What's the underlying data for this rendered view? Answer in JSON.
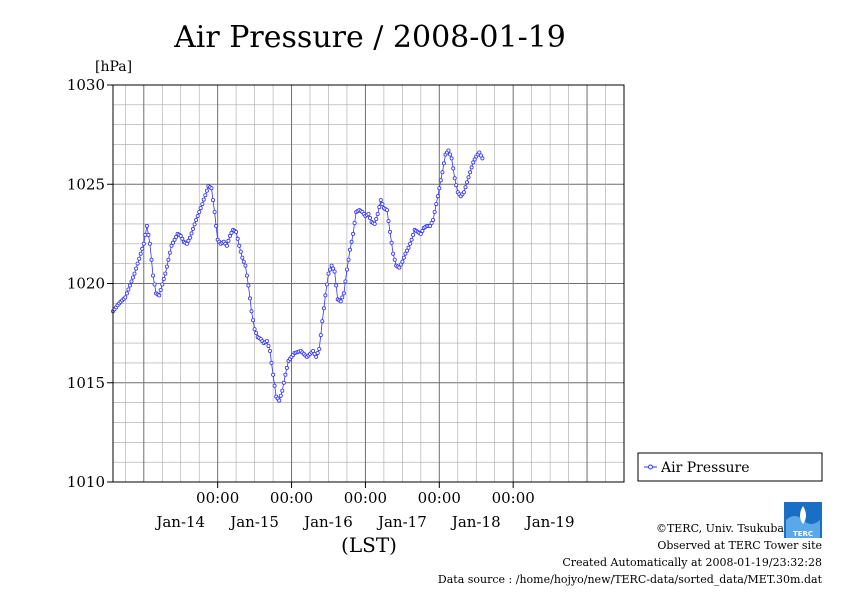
{
  "chart_data": {
    "type": "line",
    "title": "Air Pressure / 2008-01-19",
    "ylabel_unit": "[hPa]",
    "xlabel": "(LST)",
    "ylim": [
      1010,
      1030
    ],
    "yticks": [
      "1010",
      "1015",
      "1020",
      "1025",
      "1030"
    ],
    "xlim_hours": [
      -10,
      156
    ],
    "x_time_ticks": [
      {
        "hour": 24,
        "label": "00:00"
      },
      {
        "hour": 48,
        "label": "00:00"
      },
      {
        "hour": 72,
        "label": "00:00"
      },
      {
        "hour": 96,
        "label": "00:00"
      },
      {
        "hour": 120,
        "label": "00:00"
      }
    ],
    "x_day_labels": [
      {
        "hour": 12,
        "label": "Jan-14"
      },
      {
        "hour": 36,
        "label": "Jan-15"
      },
      {
        "hour": 60,
        "label": "Jan-16"
      },
      {
        "hour": 84,
        "label": "Jan-17"
      },
      {
        "hour": 108,
        "label": "Jan-18"
      },
      {
        "hour": 132,
        "label": "Jan-19"
      }
    ],
    "grid": true,
    "legend_position": "right",
    "series": [
      {
        "name": "Air Pressure",
        "color": "#3333ff",
        "interval_hours": 0.5,
        "start_hour": -10,
        "anchor_points": [
          [
            -10,
            1018.6
          ],
          [
            -8,
            1019.0
          ],
          [
            -6,
            1019.3
          ],
          [
            -3,
            1020.5
          ],
          [
            0,
            1022.0
          ],
          [
            1,
            1022.9
          ],
          [
            2,
            1022.0
          ],
          [
            3,
            1020.4
          ],
          [
            4,
            1019.5
          ],
          [
            5,
            1019.4
          ],
          [
            7,
            1020.5
          ],
          [
            9,
            1021.9
          ],
          [
            11,
            1022.5
          ],
          [
            12,
            1022.4
          ],
          [
            13,
            1022.1
          ],
          [
            14,
            1022.0
          ],
          [
            15,
            1022.3
          ],
          [
            17,
            1023.2
          ],
          [
            19,
            1024.0
          ],
          [
            21,
            1024.9
          ],
          [
            22,
            1024.8
          ],
          [
            23,
            1023.6
          ],
          [
            24,
            1022.2
          ],
          [
            25,
            1022.0
          ],
          [
            26,
            1022.1
          ],
          [
            27,
            1021.9
          ],
          [
            28,
            1022.4
          ],
          [
            29,
            1022.7
          ],
          [
            30,
            1022.6
          ],
          [
            31,
            1021.9
          ],
          [
            32,
            1021.3
          ],
          [
            33,
            1020.9
          ],
          [
            34,
            1019.9
          ],
          [
            35,
            1018.6
          ],
          [
            36,
            1017.7
          ],
          [
            37,
            1017.3
          ],
          [
            38,
            1017.2
          ],
          [
            39,
            1017.0
          ],
          [
            40,
            1017.1
          ],
          [
            41,
            1016.6
          ],
          [
            42,
            1015.4
          ],
          [
            43,
            1014.3
          ],
          [
            44,
            1014.1
          ],
          [
            45,
            1014.6
          ],
          [
            46,
            1015.4
          ],
          [
            47,
            1016.1
          ],
          [
            49,
            1016.5
          ],
          [
            51,
            1016.6
          ],
          [
            53,
            1016.3
          ],
          [
            55,
            1016.6
          ],
          [
            56,
            1016.3
          ],
          [
            57,
            1016.7
          ],
          [
            58,
            1018.1
          ],
          [
            59,
            1019.4
          ],
          [
            60,
            1020.5
          ],
          [
            61,
            1020.9
          ],
          [
            62,
            1020.6
          ],
          [
            63,
            1019.2
          ],
          [
            64,
            1019.1
          ],
          [
            65,
            1019.5
          ],
          [
            66,
            1020.7
          ],
          [
            67,
            1021.7
          ],
          [
            68,
            1022.5
          ],
          [
            69,
            1023.6
          ],
          [
            70,
            1023.7
          ],
          [
            71,
            1023.6
          ],
          [
            72,
            1023.4
          ],
          [
            73,
            1023.5
          ],
          [
            74,
            1023.1
          ],
          [
            75,
            1023.0
          ],
          [
            76,
            1023.5
          ],
          [
            77,
            1024.2
          ],
          [
            78,
            1023.8
          ],
          [
            79,
            1023.7
          ],
          [
            80,
            1022.6
          ],
          [
            81,
            1021.5
          ],
          [
            82,
            1020.9
          ],
          [
            83,
            1020.8
          ],
          [
            84,
            1021.1
          ],
          [
            85,
            1021.5
          ],
          [
            86,
            1021.8
          ],
          [
            87,
            1022.2
          ],
          [
            88,
            1022.7
          ],
          [
            89,
            1022.6
          ],
          [
            90,
            1022.5
          ],
          [
            91,
            1022.8
          ],
          [
            92,
            1022.9
          ],
          [
            93,
            1022.9
          ],
          [
            94,
            1023.2
          ],
          [
            95,
            1024.0
          ],
          [
            96,
            1024.8
          ],
          [
            97,
            1025.6
          ],
          [
            98,
            1026.5
          ],
          [
            99,
            1026.7
          ],
          [
            100,
            1026.3
          ],
          [
            101,
            1025.3
          ],
          [
            102,
            1024.6
          ],
          [
            103,
            1024.4
          ],
          [
            104,
            1024.6
          ],
          [
            105,
            1025.1
          ],
          [
            106,
            1025.6
          ],
          [
            107,
            1026.1
          ],
          [
            108,
            1026.4
          ],
          [
            109,
            1026.6
          ],
          [
            110,
            1026.3
          ]
        ]
      }
    ],
    "legend_label": "Air Pressure"
  },
  "footer": {
    "copyright": "©TERC, Univ. Tsukuba",
    "observed": "Observed at TERC Tower site",
    "created": "Created Automatically at 2008-01-19/23:32:28",
    "source": "Data source : /home/hojyo/new/TERC-data/sorted_data/MET.30m.dat",
    "logo_text": "TERC"
  }
}
